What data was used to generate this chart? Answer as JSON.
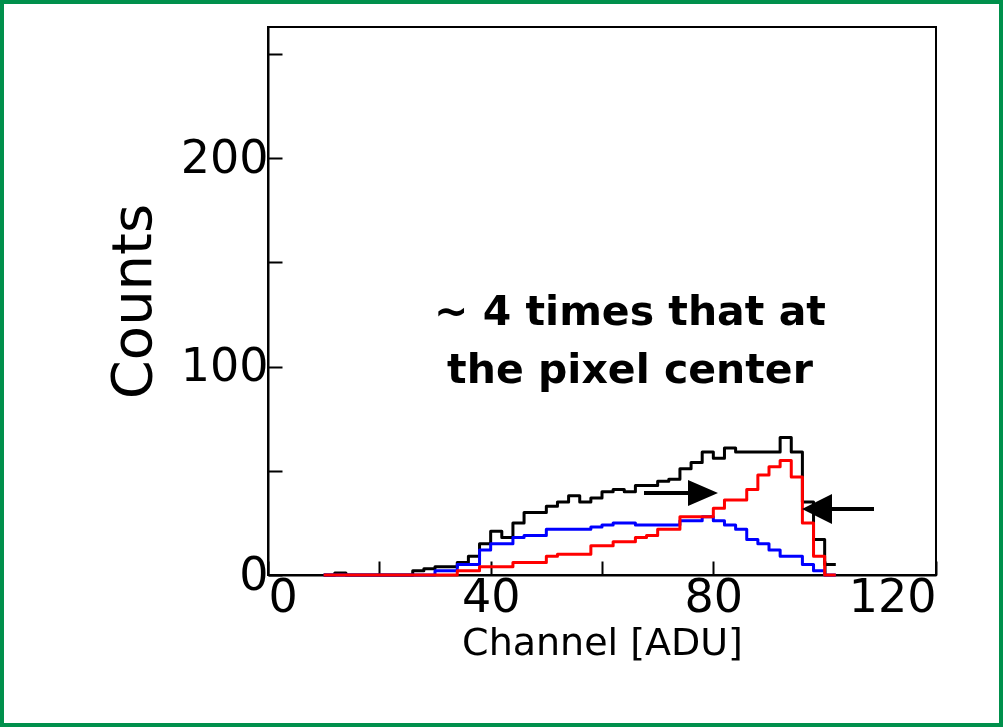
{
  "chart_data": {
    "type": "histogram",
    "xlabel": "Channel [ADU]",
    "ylabel": "Counts",
    "bins": [
      10,
      12,
      14,
      16,
      18,
      20,
      22,
      24,
      26,
      28,
      30,
      32,
      34,
      36,
      38,
      40,
      42,
      44,
      46,
      48,
      50,
      52,
      54,
      56,
      58,
      60,
      62,
      64,
      66,
      68,
      70,
      72,
      74,
      76,
      78,
      80,
      82,
      84,
      86,
      88,
      90,
      92,
      94,
      96,
      98,
      100,
      102
    ],
    "series": [
      {
        "color": "#000000",
        "values": [
          0,
          1,
          0,
          0,
          0,
          0,
          0,
          0,
          2,
          3,
          4,
          4,
          6,
          9,
          15,
          21,
          18,
          25,
          30,
          30,
          33,
          35,
          38,
          35,
          37,
          40,
          41,
          40,
          43,
          43,
          45,
          46,
          51,
          54,
          59,
          56,
          61,
          59,
          59,
          59,
          59,
          66,
          59,
          35,
          17,
          5
        ]
      },
      {
        "color": "#0000ff",
        "values": [
          0,
          0,
          0,
          0,
          0,
          0,
          0,
          0,
          0,
          0,
          2,
          2,
          5,
          5,
          12,
          15,
          15,
          18,
          19,
          19,
          22,
          22,
          22,
          22,
          23,
          24,
          25,
          25,
          24,
          24,
          24,
          24,
          26,
          26,
          28,
          26,
          24,
          22,
          17,
          15,
          12,
          9,
          9,
          5,
          2,
          0
        ]
      },
      {
        "color": "#ff0000",
        "values": [
          0,
          0,
          0,
          0,
          0,
          0,
          0,
          0,
          0,
          0,
          0,
          0,
          2,
          2,
          4,
          4,
          4,
          6,
          6,
          6,
          9,
          10,
          10,
          10,
          14,
          14,
          16,
          16,
          18,
          19,
          22,
          22,
          28,
          28,
          28,
          32,
          36,
          36,
          41,
          48,
          52,
          55,
          47,
          25,
          9,
          0
        ]
      }
    ],
    "xlim": [
      0,
      120
    ],
    "xticks": [
      0,
      {
        "value": 20,
        "label": null
      },
      40,
      {
        "value": 60,
        "label": null
      },
      80,
      {
        "value": 100,
        "label": null
      },
      120
    ],
    "ylim": [
      0,
      263
    ],
    "yticks": [
      0,
      {
        "value": 50,
        "label": null
      },
      100,
      {
        "value": 150,
        "label": null
      },
      200,
      {
        "value": 250,
        "label": null
      }
    ],
    "annotations": [
      "~ 4 times that at the pixel center"
    ]
  }
}
